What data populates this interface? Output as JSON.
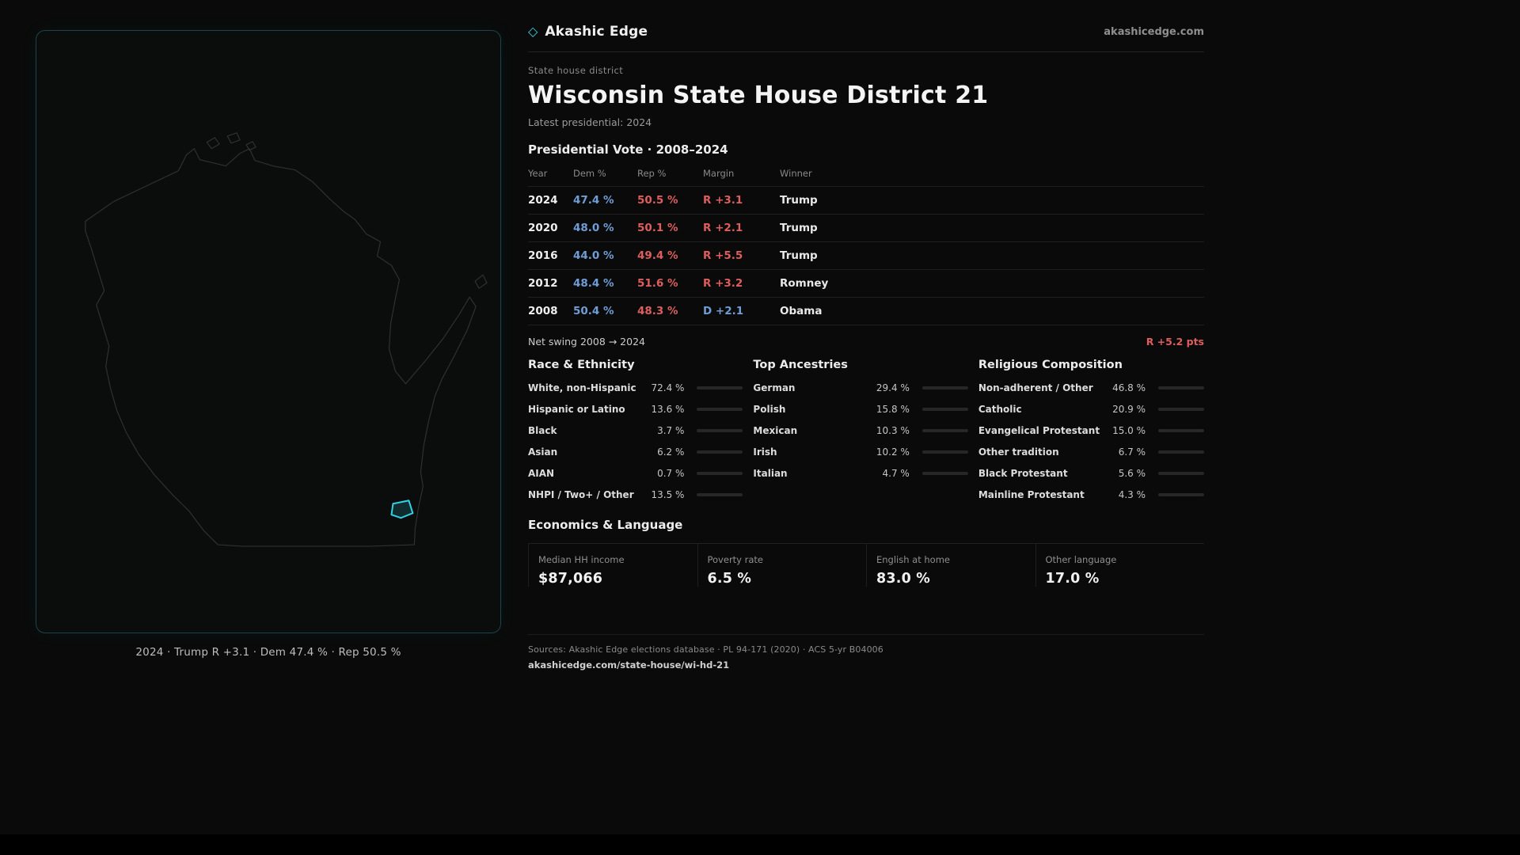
{
  "colors": {
    "accent_cyan": "#33d1e2",
    "dem_blue": "#6f9ed6",
    "rep_red": "#de5e5e"
  },
  "brand": {
    "icon": "◇",
    "name": "Akashic Edge",
    "site": "akashicedge.com"
  },
  "map": {
    "caption": "2024 · Trump R +3.1 · Dem 47.4 % · Rep 50.5 %"
  },
  "header": {
    "kicker": "State house district",
    "title": "Wisconsin State House District 21",
    "subtitle": "Latest presidential: 2024"
  },
  "vote_table": {
    "title": "Presidential Vote · 2008–2024",
    "columns": [
      "Year",
      "Dem %",
      "Rep %",
      "Margin",
      "Winner"
    ],
    "rows": [
      {
        "year": "2024",
        "dem": "47.4 %",
        "rep": "50.5 %",
        "margin": "R +3.1",
        "party": "R",
        "winner": "Trump"
      },
      {
        "year": "2020",
        "dem": "48.0 %",
        "rep": "50.1 %",
        "margin": "R +2.1",
        "party": "R",
        "winner": "Trump"
      },
      {
        "year": "2016",
        "dem": "44.0 %",
        "rep": "49.4 %",
        "margin": "R +5.5",
        "party": "R",
        "winner": "Trump"
      },
      {
        "year": "2012",
        "dem": "48.4 %",
        "rep": "51.6 %",
        "margin": "R +3.2",
        "party": "R",
        "winner": "Romney"
      },
      {
        "year": "2008",
        "dem": "50.4 %",
        "rep": "48.3 %",
        "margin": "D +2.1",
        "party": "D",
        "winner": "Obama"
      }
    ],
    "net_swing_label": "Net swing 2008 → 2024",
    "net_swing_value": "R +5.2 pts"
  },
  "demographics": {
    "race": {
      "title": "Race & Ethnicity",
      "rows": [
        {
          "label": "White, non-Hispanic",
          "value": "72.4 %",
          "pct": 72.4
        },
        {
          "label": "Hispanic or Latino",
          "value": "13.6 %",
          "pct": 13.6
        },
        {
          "label": "Black",
          "value": "3.7 %",
          "pct": 3.7
        },
        {
          "label": "Asian",
          "value": "6.2 %",
          "pct": 6.2
        },
        {
          "label": "AIAN",
          "value": "0.7 %",
          "pct": 0.7
        },
        {
          "label": "NHPI / Two+ / Other",
          "value": "13.5 %",
          "pct": 13.5
        }
      ]
    },
    "ancestries": {
      "title": "Top Ancestries",
      "rows": [
        {
          "label": "German",
          "value": "29.4 %",
          "pct": 29.4
        },
        {
          "label": "Polish",
          "value": "15.8 %",
          "pct": 15.8
        },
        {
          "label": "Mexican",
          "value": "10.3 %",
          "pct": 10.3
        },
        {
          "label": "Irish",
          "value": "10.2 %",
          "pct": 10.2
        },
        {
          "label": "Italian",
          "value": "4.7 %",
          "pct": 4.7
        }
      ]
    },
    "religion": {
      "title": "Religious Composition",
      "rows": [
        {
          "label": "Non-adherent / Other",
          "value": "46.8 %",
          "pct": 46.8
        },
        {
          "label": "Catholic",
          "value": "20.9 %",
          "pct": 20.9
        },
        {
          "label": "Evangelical Protestant",
          "value": "15.0 %",
          "pct": 15.0
        },
        {
          "label": "Other tradition",
          "value": "6.7 %",
          "pct": 6.7
        },
        {
          "label": "Black Protestant",
          "value": "5.6 %",
          "pct": 5.6
        },
        {
          "label": "Mainline Protestant",
          "value": "4.3 %",
          "pct": 4.3
        }
      ]
    }
  },
  "economics": {
    "title": "Economics & Language",
    "stats": [
      {
        "label": "Median HH income",
        "value": "$87,066"
      },
      {
        "label": "Poverty rate",
        "value": "6.5 %"
      },
      {
        "label": "English at home",
        "value": "83.0 %"
      },
      {
        "label": "Other language",
        "value": "17.0 %"
      }
    ]
  },
  "footer": {
    "sources": "Sources: Akashic Edge elections database · PL 94-171 (2020) · ACS 5-yr B04006",
    "permalink": "akashicedge.com/state-house/wi-hd-21"
  }
}
